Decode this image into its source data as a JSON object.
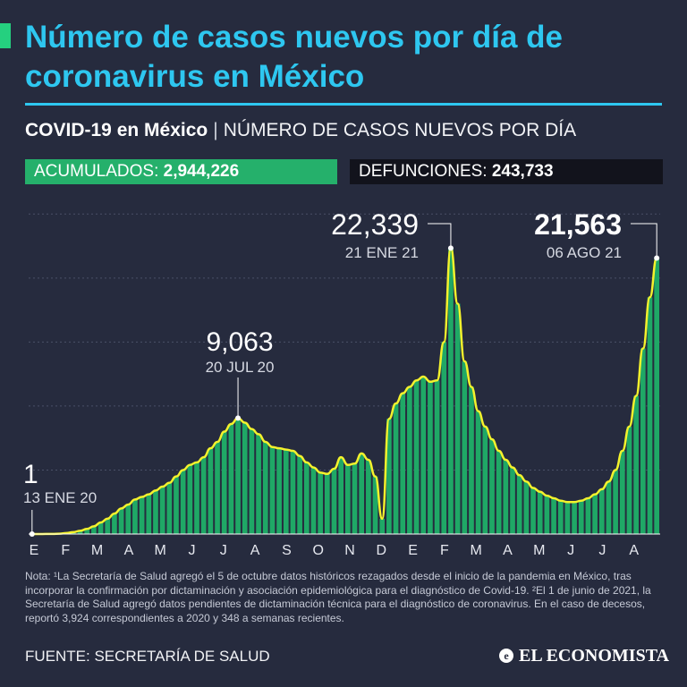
{
  "header": {
    "title": "Número de casos nuevos por día de coronavirus en México",
    "subtitle_strong": "COVID-19 en México",
    "subtitle_sep": "|",
    "subtitle_desc": "NÚMERO DE CASOS NUEVOS POR DÍA"
  },
  "stats": {
    "acumulados_label": "ACUMULADOS:",
    "acumulados_value": "2,944,226",
    "defunciones_label": "DEFUNCIONES:",
    "defunciones_value": "243,733"
  },
  "colors": {
    "background": "#262b3e",
    "title": "#2ec7f0",
    "bars": "#1fa866",
    "trend": "#f4f22c",
    "acumulados_bg": "#25b06b",
    "defunciones_bg": "#12131c"
  },
  "chart_data": {
    "type": "bar",
    "title": "",
    "xlabel": "",
    "ylabel": "",
    "ylim": [
      0,
      26000
    ],
    "x_tick_labels": [
      "E",
      "F",
      "M",
      "A",
      "M",
      "J",
      "J",
      "A",
      "S",
      "O",
      "N",
      "D",
      "E",
      "F",
      "M",
      "A",
      "M",
      "J",
      "J",
      "A"
    ],
    "trend_line": "7-day average (yellow)",
    "series": [
      {
        "values_by_week": [
          1,
          2,
          5,
          10,
          30,
          80,
          150,
          250,
          400,
          600,
          900,
          1200,
          1600,
          2000,
          2300,
          2700,
          2900,
          3100,
          3400,
          3700,
          4000,
          4500,
          5000,
          5400,
          5600,
          6000,
          6700,
          7200,
          8000,
          8600,
          9063,
          8700,
          8200,
          7800,
          7200,
          6800,
          6700,
          6600,
          6500,
          6100,
          5600,
          5200,
          4800,
          4700,
          5100,
          6000,
          5400,
          5500,
          6300,
          5800,
          4500,
          1200,
          9000,
          10200,
          11000,
          11500,
          12000,
          12300,
          11900,
          12000,
          15000,
          22339,
          18000,
          13500,
          11500,
          9600,
          8400,
          7400,
          6500,
          5800,
          5200,
          4600,
          4100,
          3600,
          3300,
          3000,
          2800,
          2600,
          2500,
          2500,
          2600,
          2800,
          3100,
          3500,
          4100,
          5000,
          6500,
          8400,
          10800,
          14500,
          18500,
          21563
        ]
      }
    ],
    "annotations": [
      {
        "label": "1",
        "date": "13 ENE 20"
      },
      {
        "label": "9,063",
        "date": "20 JUL 20"
      },
      {
        "label": "22,339",
        "date": "21 ENE 21"
      },
      {
        "label": "21,563",
        "date": "06 AGO 21"
      }
    ]
  },
  "footer": {
    "note": "Nota: ¹La Secretaría de Salud agregó el 5 de octubre datos históricos rezagados desde el inicio de la pandemia en México, tras incorporar la confirmación por dictaminación y asociación epidemiológica para el diagnóstico de Covid-19. ²El 1 de junio de 2021, la Secretaría de Salud agregó datos pendientes de dictaminación técnica para el diagnóstico de coronavirus. En el caso de decesos, reportó 3,924 correspondientes a 2020 y 348 a semanas recientes.",
    "source": "FUENTE: SECRETARÍA DE SALUD",
    "brand": "EL ECONOMISTA",
    "brand_mark": "e"
  }
}
